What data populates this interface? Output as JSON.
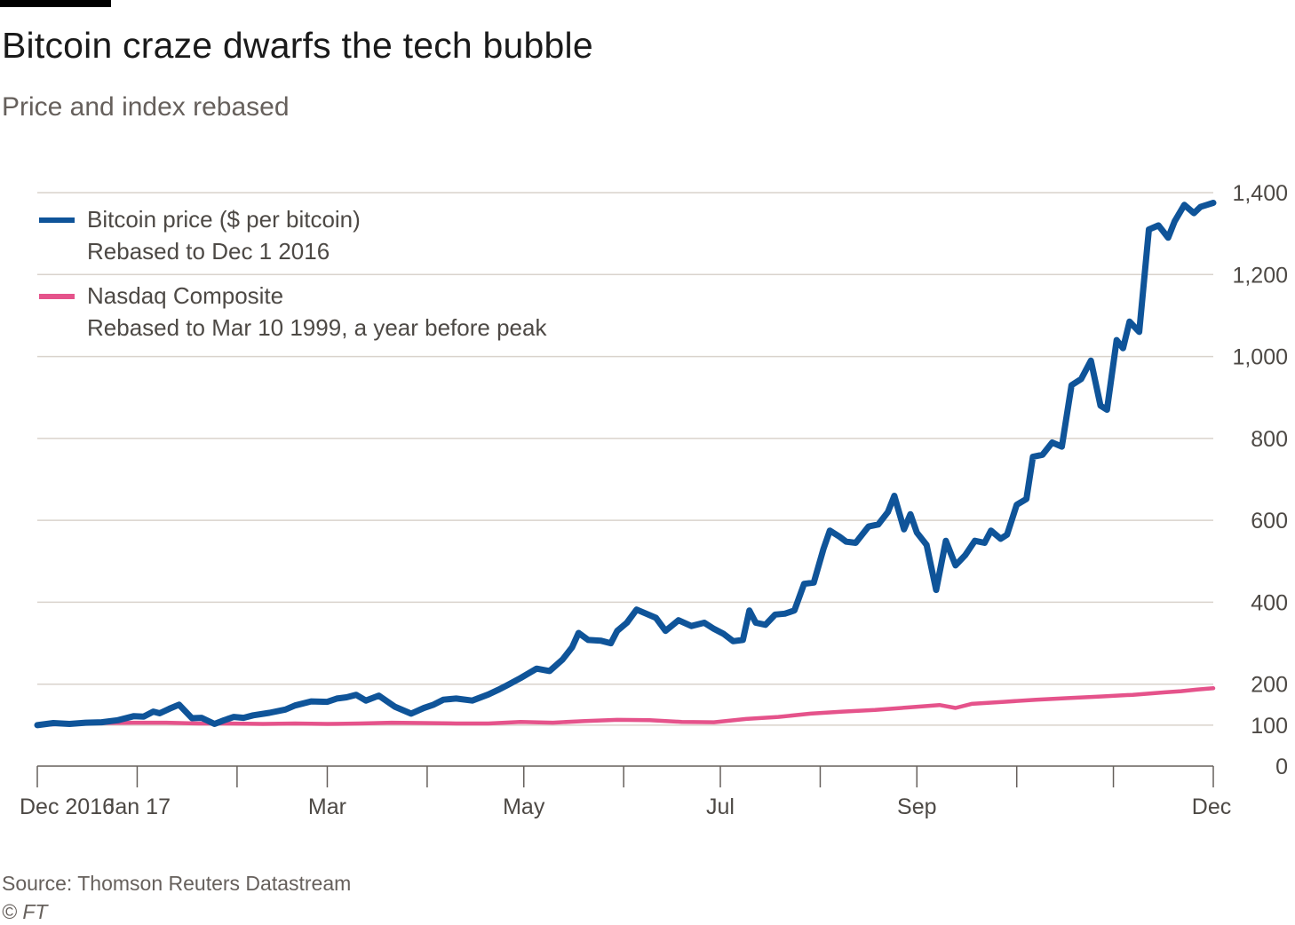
{
  "header": {
    "title": "Bitcoin craze dwarfs the tech bubble",
    "subtitle": "Price and index rebased"
  },
  "footer": {
    "source": "Source: Thomson Reuters Datastream",
    "copyright": "© FT"
  },
  "chart_data": {
    "type": "line",
    "title": "Bitcoin craze dwarfs the tech bubble",
    "subtitle": "Price and index rebased",
    "xlabel": "",
    "ylabel": "",
    "x_ticks": [
      "Dec 2016",
      "Jan 17",
      "Mar",
      "May",
      "Jul",
      "Sep",
      "Dec"
    ],
    "x_tick_positions_days": [
      0,
      31,
      90,
      151,
      212,
      273,
      365
    ],
    "x_range_days": [
      0,
      365
    ],
    "y_ticks": [
      0,
      100,
      200,
      400,
      600,
      800,
      1000,
      1200,
      1400
    ],
    "y_tick_labels": [
      "0",
      "100",
      "200",
      "400",
      "600",
      "800",
      "1,000",
      "1,200",
      "1,400"
    ],
    "ylim": [
      0,
      1400
    ],
    "grid": true,
    "legend_position": "top-left",
    "series": [
      {
        "name": "Bitcoin price ($ per bitcoin)",
        "note": "Rebased to Dec 1 2016",
        "color": "#0f5499",
        "x": [
          0,
          5,
          10,
          15,
          20,
          25,
          30,
          33,
          36,
          38,
          41,
          44,
          48,
          51,
          55,
          58,
          61,
          64,
          67,
          72,
          77,
          80,
          85,
          90,
          93,
          96,
          99,
          102,
          106,
          111,
          116,
          120,
          123,
          126,
          130,
          135,
          140,
          143,
          146,
          150,
          155,
          159,
          163,
          166,
          168,
          171,
          175,
          178,
          180,
          183,
          186,
          189,
          192,
          195,
          199,
          203,
          207,
          210,
          213,
          216,
          219,
          221,
          223,
          226,
          229,
          232,
          235,
          238,
          241,
          244,
          246,
          249,
          251,
          254,
          256,
          258,
          261,
          264,
          266,
          269,
          271,
          273,
          276,
          279,
          282,
          285,
          288,
          291,
          294,
          296,
          299,
          301,
          304,
          307,
          309,
          312,
          315,
          318,
          321,
          324,
          327,
          330,
          332,
          335,
          337,
          339,
          342,
          345,
          348,
          351,
          353,
          356,
          359,
          361,
          363,
          365
        ],
        "values": [
          100,
          105,
          103,
          106,
          107,
          112,
          122,
          121,
          133,
          129,
          140,
          150,
          117,
          118,
          103,
          112,
          120,
          118,
          124,
          130,
          138,
          148,
          158,
          157,
          165,
          168,
          174,
          160,
          172,
          145,
          128,
          142,
          150,
          162,
          165,
          160,
          175,
          186,
          198,
          215,
          238,
          232,
          260,
          290,
          325,
          308,
          306,
          300,
          330,
          350,
          382,
          372,
          362,
          330,
          356,
          342,
          350,
          335,
          323,
          305,
          308,
          380,
          350,
          345,
          370,
          372,
          380,
          445,
          448,
          530,
          575,
          560,
          548,
          545,
          565,
          585,
          590,
          620,
          660,
          578,
          615,
          570,
          540,
          430,
          550,
          490,
          515,
          550,
          545,
          575,
          555,
          565,
          638,
          652,
          755,
          760,
          790,
          780,
          930,
          945,
          990,
          880,
          870,
          1040,
          1020,
          1085,
          1060,
          1310,
          1320,
          1290,
          1330,
          1370,
          1350,
          1365,
          1370,
          1375
        ],
        "values_note": "values read off chart"
      },
      {
        "name": "Nasdaq Composite",
        "note": "Rebased to Mar 10 1999, a year before peak",
        "color": "#e5538b",
        "x": [
          0,
          10,
          20,
          30,
          40,
          50,
          60,
          70,
          80,
          90,
          100,
          110,
          120,
          130,
          140,
          150,
          160,
          170,
          180,
          190,
          200,
          210,
          220,
          230,
          240,
          250,
          260,
          270,
          280,
          285,
          290,
          300,
          310,
          320,
          330,
          340,
          350,
          355,
          360,
          365
        ],
        "values": [
          100,
          104,
          105,
          106,
          106,
          104,
          104,
          103,
          104,
          103,
          104,
          106,
          105,
          104,
          104,
          108,
          106,
          110,
          113,
          112,
          108,
          107,
          115,
          120,
          128,
          133,
          137,
          143,
          149,
          142,
          152,
          157,
          162,
          166,
          170,
          174,
          180,
          183,
          187,
          190
        ]
      }
    ]
  }
}
